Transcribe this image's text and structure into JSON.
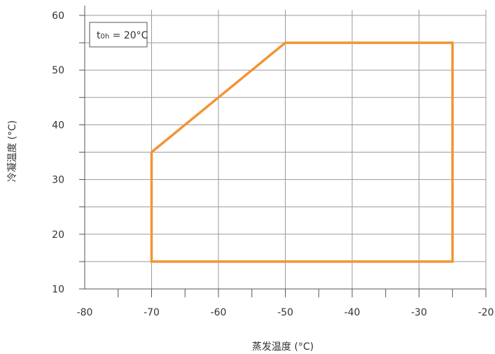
{
  "chart_data": {
    "type": "line",
    "title": "",
    "xlabel": "蒸发温度 (°C)",
    "ylabel": "冷凝温度 (°C)",
    "xlim": [
      -80,
      -20
    ],
    "ylim": [
      10,
      60
    ],
    "x_ticks": [
      -80,
      -70,
      -60,
      -50,
      -40,
      -30,
      -20
    ],
    "x_tick_labels": [
      "-80",
      "-70",
      "-60",
      "-50",
      "-40",
      "-30",
      "-20"
    ],
    "y_ticks": [
      10,
      20,
      30,
      40,
      50,
      60
    ],
    "y_tick_labels": [
      "10",
      "20",
      "30",
      "40",
      "50",
      "60"
    ],
    "x_minor_step": 5,
    "y_minor_step": 5,
    "grid": true,
    "legend": "none",
    "annotation": {
      "position": "top-left",
      "main": "t",
      "subscript": "0h",
      "value": " = 20°C"
    },
    "series": [
      {
        "closed": true,
        "color": "#f39433",
        "points": [
          {
            "x": -70,
            "y": 15
          },
          {
            "x": -70,
            "y": 35
          },
          {
            "x": -50,
            "y": 55
          },
          {
            "x": -25,
            "y": 55
          },
          {
            "x": -25,
            "y": 15
          }
        ]
      }
    ]
  }
}
